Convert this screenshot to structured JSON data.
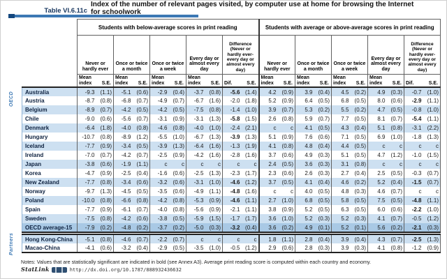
{
  "page": {
    "table_label": "Table VI.6.11c",
    "title_line1": "Index of the number of relevant pages visited, by computer use at home for browsing the Internet",
    "title_line2": "for schoolwork",
    "notes": "Notes: Values that are statistically significant are indicated in bold (see Annex A3). Average print reading score is computed within each country and economy.",
    "statlink_label": "StatLink",
    "statlink_url": "http://dx.doi.org/10.1787/888932436632"
  },
  "colors": {
    "accent_blue": "#3c78b4",
    "accent_blue_dark": "#14477e",
    "row_alt": "#cde0f1",
    "row_avg": "#a9c9e5"
  },
  "table": {
    "groups": [
      "Students with below-average scores in print reading",
      "Students with average or above-average scores in print reading"
    ],
    "freq_headers": [
      "Never or hardly ever",
      "Once or twice a month",
      "Once or twice a week",
      "Every day or almost every day",
      "Difference (Never or hardly ever- every day or almost every day)"
    ],
    "stat_headers": {
      "mean": "Mean index",
      "se": "S.E.",
      "dif": "Dif."
    },
    "side_labels": {
      "oecd": "OECD",
      "partners": "Partners"
    },
    "oecd_rows": [
      {
        "name": "Australia",
        "bold": [
          8
        ],
        "cells": [
          "-9.3",
          "(1.1)",
          "-5.1",
          "(0.6)",
          "-2.9",
          "(0.4)",
          "-3.7",
          "(0.8)",
          "-5.6",
          "(1.4)",
          "4.2",
          "(0.9)",
          "3.9",
          "(0.4)",
          "4.5",
          "(0.2)",
          "4.9",
          "(0.3)",
          "-0.7",
          "(1.0)"
        ]
      },
      {
        "name": "Austria",
        "bold": [
          18
        ],
        "cells": [
          "-8.7",
          "(0.8)",
          "-6.8",
          "(0.7)",
          "-4.9",
          "(0.7)",
          "-6.7",
          "(1.6)",
          "-2.0",
          "(1.8)",
          "5.2",
          "(0.9)",
          "6.4",
          "(0.5)",
          "6.8",
          "(0.5)",
          "8.0",
          "(0.6)",
          "-2.9",
          "(1.1)"
        ]
      },
      {
        "name": "Belgium",
        "bold": [],
        "cells": [
          "-8.9",
          "(0.7)",
          "-4.2",
          "(0.5)",
          "-4.2",
          "(0.5)",
          "-7.5",
          "(0.8)",
          "-1.4",
          "(1.0)",
          "3.9",
          "(0.7)",
          "5.3",
          "(0.2)",
          "5.5",
          "(0.2)",
          "4.7",
          "(0.5)",
          "-0.8",
          "(1.0)"
        ]
      },
      {
        "name": "Chile",
        "bold": [
          8,
          18
        ],
        "cells": [
          "-9.0",
          "(0.6)",
          "-5.6",
          "(0.7)",
          "-3.1",
          "(0.9)",
          "-3.1",
          "(1.3)",
          "-5.8",
          "(1.5)",
          "2.6",
          "(0.8)",
          "5.9",
          "(0.7)",
          "7.7",
          "(0.5)",
          "8.1",
          "(0.7)",
          "-5.4",
          "(1.1)"
        ]
      },
      {
        "name": "Denmark",
        "bold": [],
        "cells": [
          "-6.4",
          "(1.8)",
          "-4.0",
          "(0.8)",
          "-4.6",
          "(0.8)",
          "-4.0",
          "(1.0)",
          "-2.4",
          "(2.1)",
          "c",
          "c",
          "4.1",
          "(0.5)",
          "4.3",
          "(0.4)",
          "5.1",
          "(0.8)",
          "-3.1",
          "(2.2)"
        ]
      },
      {
        "name": "Hungary",
        "bold": [
          8
        ],
        "cells": [
          "-10.7",
          "(0.8)",
          "-8.9",
          "(1.2)",
          "-5.5",
          "(1.0)",
          "-6.7",
          "(1.3)",
          "-3.9",
          "(1.3)",
          "5.1",
          "(0.9)",
          "7.6",
          "(0.6)",
          "7.1",
          "(0.5)",
          "6.9",
          "(1.0)",
          "-1.8",
          "(1.3)"
        ]
      },
      {
        "name": "Iceland",
        "bold": [],
        "cells": [
          "-7.7",
          "(0.9)",
          "-3.4",
          "(0.5)",
          "-3.9",
          "(1.3)",
          "-6.4",
          "(1.6)",
          "-1.3",
          "(1.9)",
          "4.1",
          "(0.8)",
          "4.8",
          "(0.4)",
          "4.4",
          "(0.5)",
          "c",
          "c",
          "c",
          "c"
        ]
      },
      {
        "name": "Ireland",
        "bold": [],
        "cells": [
          "-7.0",
          "(0.7)",
          "-4.2",
          "(0.7)",
          "-2.5",
          "(0.9)",
          "-4.2",
          "(1.6)",
          "-2.8",
          "(1.6)",
          "3.7",
          "(0.6)",
          "4.9",
          "(0.3)",
          "5.1",
          "(0.5)",
          "4.7",
          "(1.2)",
          "-1.0",
          "(1.5)"
        ]
      },
      {
        "name": "Japan",
        "bold": [],
        "cells": [
          "-3.8",
          "(0.6)",
          "-1.9",
          "(1.1)",
          "c",
          "c",
          "c",
          "c",
          "c",
          "c",
          "2.4",
          "(0.5)",
          "3.6",
          "(0.3)",
          "3.1",
          "(0.8)",
          "c",
          "c",
          "c",
          "c"
        ]
      },
      {
        "name": "Korea",
        "bold": [],
        "cells": [
          "-4.7",
          "(0.9)",
          "-2.5",
          "(0.4)",
          "-1.6",
          "(0.6)",
          "-2.5",
          "(1.3)",
          "-2.3",
          "(1.7)",
          "2.3",
          "(0.6)",
          "2.6",
          "(0.3)",
          "2.7",
          "(0.4)",
          "2.5",
          "(0.5)",
          "-0.3",
          "(0.7)"
        ]
      },
      {
        "name": "New Zealand",
        "bold": [
          8,
          18
        ],
        "cells": [
          "-7.7",
          "(0.8)",
          "-3.4",
          "(0.6)",
          "-3.2",
          "(0.6)",
          "-3.1",
          "(1.0)",
          "-4.6",
          "(1.2)",
          "3.7",
          "(0.5)",
          "4.1",
          "(0.4)",
          "4.6",
          "(0.2)",
          "5.2",
          "(0.4)",
          "-1.5",
          "(0.7)"
        ]
      },
      {
        "name": "Norway",
        "bold": [
          8
        ],
        "cells": [
          "-9.7",
          "(1.3)",
          "-4.5",
          "(0.5)",
          "-3.5",
          "(0.6)",
          "-4.9",
          "(1.1)",
          "-4.8",
          "(1.6)",
          "c",
          "c",
          "4.0",
          "(0.5)",
          "4.8",
          "(0.3)",
          "4.6",
          "(0.7)",
          "c",
          "c"
        ]
      },
      {
        "name": "Poland",
        "bold": [
          8,
          18
        ],
        "cells": [
          "-10.0",
          "(0.8)",
          "-6.6",
          "(0.8)",
          "-4.2",
          "(0.8)",
          "-5.3",
          "(0.9)",
          "-4.6",
          "(1.1)",
          "2.7",
          "(1.0)",
          "6.8",
          "(0.5)",
          "5.8",
          "(0.5)",
          "7.5",
          "(0.5)",
          "-4.8",
          "(1.1)"
        ]
      },
      {
        "name": "Spain",
        "bold": [
          18
        ],
        "cells": [
          "-7.7",
          "(0.9)",
          "-6.1",
          "(0.7)",
          "-4.0",
          "(0.8)",
          "-5.6",
          "(0.9)",
          "-2.1",
          "(1.1)",
          "3.8",
          "(0.9)",
          "5.2",
          "(0.5)",
          "6.3",
          "(0.5)",
          "6.0",
          "(0.6)",
          "-2.2",
          "(1.0)"
        ]
      },
      {
        "name": "Sweden",
        "bold": [],
        "cells": [
          "-7.5",
          "(0.8)",
          "-4.2",
          "(0.6)",
          "-3.8",
          "(0.5)",
          "-5.9",
          "(1.5)",
          "-1.7",
          "(1.7)",
          "3.6",
          "(1.0)",
          "5.2",
          "(0.3)",
          "5.2",
          "(0.3)",
          "4.1",
          "(0.7)",
          "-0.5",
          "(1.2)"
        ]
      },
      {
        "name": "OECD average-15",
        "avg": true,
        "bold": [
          8,
          18
        ],
        "cells": [
          "-7.9",
          "(0.2)",
          "-4.8",
          "(0.2)",
          "-3.7",
          "(0.2)",
          "-5.0",
          "(0.3)",
          "-3.2",
          "(0.4)",
          "3.6",
          "(0.2)",
          "4.9",
          "(0.1)",
          "5.2",
          "(0.1)",
          "5.6",
          "(0.2)",
          "-2.1",
          "(0.3)"
        ]
      }
    ],
    "partner_rows": [
      {
        "name": "Hong Kong-China",
        "bold": [
          18
        ],
        "cells": [
          "-5.1",
          "(0.8)",
          "-4.6",
          "(0.7)",
          "-2.2",
          "(0.7)",
          "c",
          "c",
          "c",
          "c",
          "1.8",
          "(1.1)",
          "2.8",
          "(0.4)",
          "3.9",
          "(0.4)",
          "4.3",
          "(0.7)",
          "-2.5",
          "(1.3)"
        ]
      },
      {
        "name": "Macao-China",
        "bold": [],
        "cells": [
          "-4.1",
          "(0.6)",
          "-3.2",
          "(0.4)",
          "-2.9",
          "(0.5)",
          "-3.5",
          "(1.0)",
          "-0.5",
          "(1.2)",
          "2.9",
          "(0.6)",
          "2.8",
          "(0.3)",
          "3.9",
          "(0.3)",
          "4.1",
          "(0.8)",
          "-1.2",
          "(0.9)"
        ]
      }
    ]
  }
}
